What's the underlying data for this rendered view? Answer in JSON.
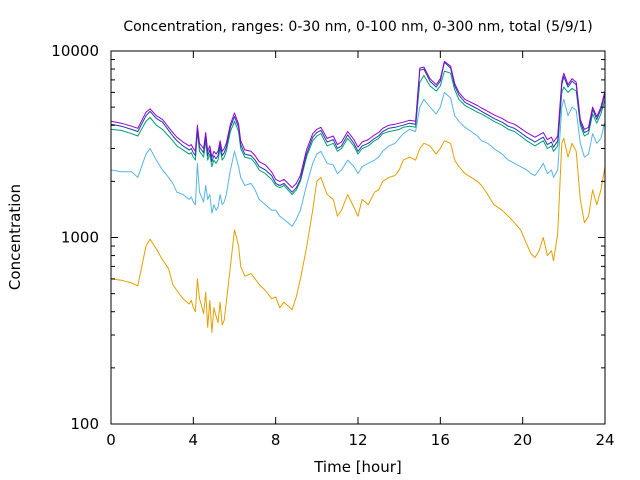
{
  "chart_data": {
    "type": "line",
    "title": "Concentration, ranges: 0-30 nm, 0-100 nm, 0-300 nm, total (5/9/1)",
    "xlabel": "Time [hour]",
    "ylabel": "Concentration",
    "xlim": [
      0,
      24
    ],
    "ylim": [
      100,
      10000
    ],
    "y_scale": "log",
    "x_ticks": [
      "0",
      "4",
      "8",
      "12",
      "16",
      "20",
      "24"
    ],
    "y_ticks": [
      "100",
      "1000",
      "10000"
    ],
    "grid": false,
    "legend": "none",
    "series": [
      {
        "color": "#e69f00",
        "x": [
          0,
          0.5,
          1,
          1.3,
          1.7,
          1.9,
          2.2,
          2.5,
          2.8,
          3.0,
          3.2,
          3.5,
          3.8,
          3.9,
          4.0,
          4.1,
          4.2,
          4.3,
          4.4,
          4.5,
          4.6,
          4.7,
          4.8,
          4.9,
          5.0,
          5.1,
          5.2,
          5.3,
          5.4,
          5.5,
          5.6,
          5.8,
          6.0,
          6.2,
          6.3,
          6.5,
          6.8,
          7.0,
          7.2,
          7.5,
          7.8,
          8.0,
          8.2,
          8.4,
          8.6,
          8.8,
          9.0,
          9.2,
          9.5,
          9.8,
          10.0,
          10.2,
          10.5,
          10.8,
          11.0,
          11.2,
          11.5,
          11.8,
          12.0,
          12.2,
          12.5,
          12.8,
          13.0,
          13.2,
          13.5,
          13.8,
          14.0,
          14.2,
          14.5,
          14.8,
          15.0,
          15.2,
          15.5,
          15.8,
          16.0,
          16.2,
          16.5,
          16.7,
          16.9,
          17.2,
          17.5,
          17.8,
          18.0,
          18.3,
          18.6,
          19.0,
          19.3,
          19.6,
          19.9,
          20.2,
          20.4,
          20.6,
          20.8,
          21.0,
          21.2,
          21.4,
          21.5,
          21.7,
          21.9,
          22.0,
          22.2,
          22.4,
          22.6,
          22.8,
          23.0,
          23.2,
          23.4,
          23.6,
          23.8,
          24.0
        ],
        "values": [
          600,
          590,
          570,
          550,
          900,
          980,
          870,
          760,
          680,
          560,
          520,
          470,
          440,
          460,
          420,
          400,
          600,
          470,
          430,
          390,
          510,
          330,
          460,
          310,
          420,
          380,
          350,
          450,
          340,
          360,
          450,
          700,
          1100,
          900,
          700,
          620,
          640,
          600,
          560,
          520,
          470,
          480,
          420,
          450,
          430,
          410,
          480,
          600,
          880,
          1400,
          2000,
          2100,
          1700,
          1600,
          1300,
          1400,
          1700,
          1450,
          1300,
          1600,
          1500,
          1750,
          1800,
          2000,
          2100,
          2150,
          2300,
          2600,
          2700,
          2600,
          3000,
          3200,
          3100,
          2800,
          3000,
          3300,
          3200,
          2600,
          2400,
          2200,
          2100,
          2000,
          1900,
          1700,
          1500,
          1400,
          1300,
          1200,
          1100,
          920,
          820,
          780,
          850,
          1000,
          800,
          850,
          750,
          1050,
          3200,
          3400,
          2700,
          3200,
          2900,
          1600,
          1200,
          1300,
          1800,
          1500,
          1800,
          2400
        ]
      },
      {
        "color": "#56b4e9",
        "x": [
          0,
          0.5,
          1,
          1.3,
          1.7,
          1.9,
          2.2,
          2.5,
          2.8,
          3.0,
          3.2,
          3.5,
          3.8,
          3.9,
          4.0,
          4.1,
          4.2,
          4.3,
          4.4,
          4.5,
          4.6,
          4.7,
          4.8,
          4.9,
          5.0,
          5.1,
          5.2,
          5.3,
          5.4,
          5.5,
          5.6,
          5.8,
          6.0,
          6.2,
          6.3,
          6.5,
          6.8,
          7.0,
          7.2,
          7.5,
          7.8,
          8.0,
          8.2,
          8.4,
          8.6,
          8.8,
          9.0,
          9.2,
          9.5,
          9.8,
          10.0,
          10.2,
          10.5,
          10.8,
          11.0,
          11.2,
          11.5,
          11.8,
          12.0,
          12.2,
          12.5,
          12.8,
          13.0,
          13.2,
          13.5,
          13.8,
          14.0,
          14.2,
          14.5,
          14.8,
          15.0,
          15.2,
          15.5,
          15.8,
          16.0,
          16.2,
          16.5,
          16.7,
          16.9,
          17.2,
          17.5,
          17.8,
          18.0,
          18.3,
          18.6,
          19.0,
          19.3,
          19.6,
          19.9,
          20.2,
          20.4,
          20.6,
          20.8,
          21.0,
          21.2,
          21.4,
          21.5,
          21.7,
          21.9,
          22.0,
          22.2,
          22.4,
          22.6,
          22.8,
          23.0,
          23.2,
          23.4,
          23.6,
          23.8,
          24.0
        ],
        "values": [
          2300,
          2250,
          2250,
          2100,
          2800,
          3000,
          2600,
          2300,
          2100,
          1950,
          1750,
          1700,
          1600,
          1650,
          1550,
          1500,
          2500,
          1750,
          1650,
          1550,
          1900,
          1600,
          1700,
          1350,
          1500,
          1400,
          1450,
          1700,
          1500,
          1550,
          1700,
          2300,
          2900,
          2400,
          2100,
          1900,
          1950,
          1800,
          1600,
          1500,
          1400,
          1400,
          1300,
          1250,
          1200,
          1150,
          1250,
          1400,
          1900,
          2500,
          2800,
          2900,
          2500,
          2450,
          2200,
          2300,
          2600,
          2400,
          2200,
          2400,
          2500,
          2600,
          2700,
          2900,
          3100,
          3200,
          3400,
          3600,
          3800,
          3700,
          5000,
          5500,
          5000,
          4600,
          5000,
          6000,
          5600,
          4500,
          4200,
          3900,
          3700,
          3500,
          3300,
          3200,
          3000,
          2800,
          2600,
          2500,
          2400,
          2300,
          2200,
          2150,
          2300,
          2500,
          2200,
          2300,
          2100,
          2300,
          5000,
          5500,
          4500,
          5000,
          4800,
          3200,
          2700,
          2800,
          3600,
          3200,
          3400,
          4200
        ]
      },
      {
        "color": "#009e73",
        "x": [
          0,
          0.5,
          1,
          1.3,
          1.7,
          1.9,
          2.2,
          2.5,
          2.8,
          3.0,
          3.2,
          3.5,
          3.8,
          3.9,
          4.0,
          4.1,
          4.2,
          4.3,
          4.4,
          4.5,
          4.6,
          4.7,
          4.8,
          4.9,
          5.0,
          5.1,
          5.2,
          5.3,
          5.4,
          5.5,
          5.6,
          5.8,
          6.0,
          6.2,
          6.3,
          6.5,
          6.8,
          7.0,
          7.2,
          7.5,
          7.8,
          8.0,
          8.2,
          8.4,
          8.6,
          8.8,
          9.0,
          9.2,
          9.5,
          9.8,
          10.0,
          10.2,
          10.5,
          10.8,
          11.0,
          11.2,
          11.5,
          11.8,
          12.0,
          12.2,
          12.5,
          12.8,
          13.0,
          13.2,
          13.5,
          13.8,
          14.0,
          14.2,
          14.5,
          14.8,
          15.0,
          15.2,
          15.5,
          15.8,
          16.0,
          16.2,
          16.5,
          16.7,
          16.9,
          17.2,
          17.5,
          17.8,
          18.0,
          18.3,
          18.6,
          19.0,
          19.3,
          19.6,
          19.9,
          20.2,
          20.4,
          20.6,
          20.8,
          21.0,
          21.2,
          21.4,
          21.5,
          21.7,
          21.9,
          22.0,
          22.2,
          22.4,
          22.6,
          22.8,
          23.0,
          23.2,
          23.4,
          23.6,
          23.8,
          24.0
        ],
        "values": [
          3800,
          3750,
          3600,
          3500,
          4200,
          4400,
          4000,
          3800,
          3500,
          3300,
          3100,
          2950,
          2800,
          2850,
          2700,
          2600,
          3700,
          2900,
          2800,
          2700,
          3300,
          2600,
          2800,
          2400,
          2600,
          2500,
          2600,
          3000,
          2600,
          2700,
          2900,
          3700,
          4200,
          3700,
          3000,
          2700,
          2650,
          2500,
          2300,
          2200,
          2050,
          1900,
          1850,
          1900,
          1800,
          1700,
          1800,
          2000,
          2700,
          3300,
          3500,
          3600,
          3100,
          3200,
          2900,
          3000,
          3400,
          3100,
          2800,
          3000,
          3100,
          3300,
          3400,
          3600,
          3700,
          3750,
          3800,
          3900,
          3950,
          3900,
          6800,
          7400,
          6500,
          6100,
          6500,
          7800,
          7600,
          6200,
          5500,
          5100,
          4900,
          4700,
          4600,
          4400,
          4200,
          4000,
          3800,
          3700,
          3500,
          3300,
          3200,
          3100,
          3200,
          3300,
          3000,
          3100,
          2900,
          3100,
          6000,
          6400,
          6000,
          6300,
          6100,
          4000,
          3500,
          3600,
          4600,
          4100,
          4600,
          5500
        ]
      },
      {
        "color": "#1a3fa8",
        "x": [
          0,
          0.5,
          1,
          1.3,
          1.7,
          1.9,
          2.2,
          2.5,
          2.8,
          3.0,
          3.2,
          3.5,
          3.8,
          3.9,
          4.0,
          4.1,
          4.2,
          4.3,
          4.4,
          4.5,
          4.6,
          4.7,
          4.8,
          4.9,
          5.0,
          5.1,
          5.2,
          5.3,
          5.4,
          5.5,
          5.6,
          5.8,
          6.0,
          6.2,
          6.3,
          6.5,
          6.8,
          7.0,
          7.2,
          7.5,
          7.8,
          8.0,
          8.2,
          8.4,
          8.6,
          8.8,
          9.0,
          9.2,
          9.5,
          9.8,
          10.0,
          10.2,
          10.5,
          10.8,
          11.0,
          11.2,
          11.5,
          11.8,
          12.0,
          12.2,
          12.5,
          12.8,
          13.0,
          13.2,
          13.5,
          13.8,
          14.0,
          14.2,
          14.5,
          14.8,
          15.0,
          15.2,
          15.5,
          15.8,
          16.0,
          16.2,
          16.5,
          16.7,
          16.9,
          17.2,
          17.5,
          17.8,
          18.0,
          18.3,
          18.6,
          19.0,
          19.3,
          19.6,
          19.9,
          20.2,
          20.4,
          20.6,
          20.8,
          21.0,
          21.2,
          21.4,
          21.5,
          21.7,
          21.9,
          22.0,
          22.2,
          22.4,
          22.6,
          22.8,
          23.0,
          23.2,
          23.4,
          23.6,
          23.8,
          24.0
        ],
        "values": [
          4050,
          3950,
          3800,
          3700,
          4500,
          4750,
          4350,
          4150,
          3750,
          3500,
          3300,
          3100,
          2950,
          3000,
          2850,
          2750,
          3850,
          3050,
          2950,
          2850,
          3500,
          2750,
          2950,
          2550,
          2750,
          2650,
          2750,
          3150,
          2750,
          2850,
          3050,
          3900,
          4450,
          3900,
          3150,
          2800,
          2750,
          2600,
          2400,
          2300,
          2150,
          1950,
          1900,
          1950,
          1850,
          1750,
          1850,
          2050,
          2800,
          3450,
          3650,
          3750,
          3250,
          3350,
          3000,
          3100,
          3550,
          3200,
          2900,
          3100,
          3200,
          3400,
          3500,
          3700,
          3850,
          3900,
          3950,
          4000,
          4100,
          4050,
          7900,
          8000,
          6900,
          6400,
          6900,
          8700,
          8100,
          6500,
          5800,
          5300,
          5100,
          4900,
          4750,
          4550,
          4350,
          4150,
          3950,
          3850,
          3650,
          3450,
          3350,
          3250,
          3350,
          3450,
          3150,
          3250,
          3050,
          3300,
          6600,
          7300,
          6400,
          6900,
          6600,
          4150,
          3650,
          3750,
          4850,
          4300,
          4850,
          5900
        ]
      },
      {
        "color": "#9400d3",
        "x": [
          0,
          0.5,
          1,
          1.3,
          1.7,
          1.9,
          2.2,
          2.5,
          2.8,
          3.0,
          3.2,
          3.5,
          3.8,
          3.9,
          4.0,
          4.1,
          4.2,
          4.3,
          4.4,
          4.5,
          4.6,
          4.7,
          4.8,
          4.9,
          5.0,
          5.1,
          5.2,
          5.3,
          5.4,
          5.5,
          5.6,
          5.8,
          6.0,
          6.2,
          6.3,
          6.5,
          6.8,
          7.0,
          7.2,
          7.5,
          7.8,
          8.0,
          8.2,
          8.4,
          8.6,
          8.8,
          9.0,
          9.2,
          9.5,
          9.8,
          10.0,
          10.2,
          10.5,
          10.8,
          11.0,
          11.2,
          11.5,
          11.8,
          12.0,
          12.2,
          12.5,
          12.8,
          13.0,
          13.2,
          13.5,
          13.8,
          14.0,
          14.2,
          14.5,
          14.8,
          15.0,
          15.2,
          15.5,
          15.8,
          16.0,
          16.2,
          16.5,
          16.7,
          16.9,
          17.2,
          17.5,
          17.8,
          18.0,
          18.3,
          18.6,
          19.0,
          19.3,
          19.6,
          19.9,
          20.2,
          20.4,
          20.6,
          20.8,
          21.0,
          21.2,
          21.4,
          21.5,
          21.7,
          21.9,
          22.0,
          22.2,
          22.4,
          22.6,
          22.8,
          23.0,
          23.2,
          23.4,
          23.6,
          23.8,
          24.0
        ],
        "values": [
          4200,
          4100,
          3950,
          3850,
          4700,
          4900,
          4500,
          4300,
          3900,
          3650,
          3450,
          3250,
          3100,
          3150,
          3000,
          2900,
          4000,
          3200,
          3100,
          3000,
          3650,
          2900,
          3100,
          2700,
          2900,
          2800,
          2900,
          3300,
          2900,
          3000,
          3200,
          4050,
          4650,
          4050,
          3300,
          2950,
          2900,
          2750,
          2550,
          2450,
          2250,
          2050,
          2000,
          2050,
          1950,
          1850,
          1950,
          2150,
          2950,
          3600,
          3800,
          3900,
          3400,
          3500,
          3150,
          3250,
          3700,
          3350,
          3050,
          3250,
          3350,
          3550,
          3650,
          3850,
          4000,
          4050,
          4100,
          4150,
          4250,
          4200,
          8100,
          8200,
          7100,
          6600,
          7100,
          8800,
          8300,
          6700,
          6000,
          5500,
          5300,
          5100,
          4950,
          4750,
          4550,
          4350,
          4150,
          4050,
          3850,
          3650,
          3550,
          3450,
          3550,
          3650,
          3350,
          3450,
          3250,
          3500,
          6900,
          7600,
          6600,
          7100,
          6800,
          4300,
          3800,
          3900,
          5000,
          4450,
          5000,
          6100
        ]
      }
    ]
  }
}
